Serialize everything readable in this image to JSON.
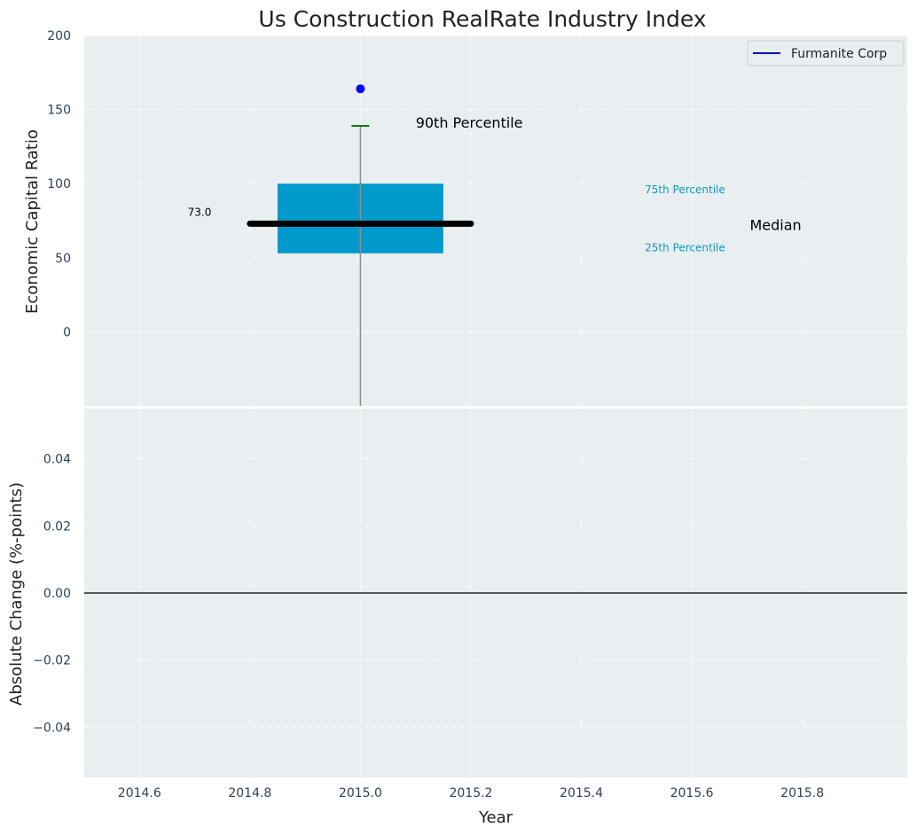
{
  "colors": {
    "panel_bg": "#e9eef0",
    "box": "#0099cc",
    "median": "#000000",
    "whisker_cap": "#008000",
    "whisker_line": "#8a8f93",
    "company": "#0000ff",
    "legend_line": "#0000cc",
    "zero_line": "#000000",
    "percentile_label": "#1199bb"
  },
  "chart_data": [
    {
      "type": "box",
      "title": "Us Construction RealRate Industry Index",
      "ylabel": "Economic Capital Ratio",
      "xlim": [
        2014.5,
        2015.99
      ],
      "ylim": [
        -50,
        200
      ],
      "yticks": [
        0,
        50,
        100,
        150,
        200
      ],
      "ytick_labels": [
        "0",
        "50",
        "100",
        "150",
        "200"
      ],
      "grid": true,
      "box": {
        "x": 2015.0,
        "x_left": 2014.85,
        "x_right": 2015.15,
        "p25": 53,
        "p75": 100,
        "median": 73,
        "median_x_range": [
          2014.8,
          2015.2
        ],
        "p90": 139,
        "lower_whisker_end": -50
      },
      "median_label": "73.0",
      "company_point": {
        "x": 2015.0,
        "y": 164
      },
      "annotations": [
        {
          "text": "90th Percentile",
          "x": 2015.1,
          "y": 141,
          "size": 16,
          "color": "#000000"
        },
        {
          "text": "75th Percentile",
          "x": 2015.515,
          "y": 96,
          "size": 12,
          "color": "#1199bb"
        },
        {
          "text": "Median",
          "x": 2015.705,
          "y": 72,
          "size": 16,
          "color": "#000000"
        },
        {
          "text": "25th Percentile",
          "x": 2015.515,
          "y": 57,
          "size": 12,
          "color": "#1199bb"
        }
      ],
      "legend": {
        "placement": "top-right",
        "entries": [
          {
            "label": "Furmanite Corp"
          }
        ]
      }
    },
    {
      "type": "line",
      "ylabel": "Absolute Change (%-points)",
      "xlabel": "Year",
      "xlim": [
        2014.5,
        2015.99
      ],
      "ylim": [
        -0.055,
        0.055
      ],
      "xticks": [
        2014.6,
        2014.8,
        2015.0,
        2015.2,
        2015.4,
        2015.6,
        2015.8
      ],
      "xtick_labels": [
        "2014.6",
        "2014.8",
        "2015.0",
        "2015.2",
        "2015.4",
        "2015.6",
        "2015.8"
      ],
      "yticks": [
        0.04,
        0.02,
        0.0,
        -0.02,
        -0.04
      ],
      "ytick_labels": [
        "0.04",
        "0.02",
        "0.00",
        "−0.02",
        "−0.04"
      ],
      "zero_line": 0.0,
      "grid": true
    }
  ]
}
